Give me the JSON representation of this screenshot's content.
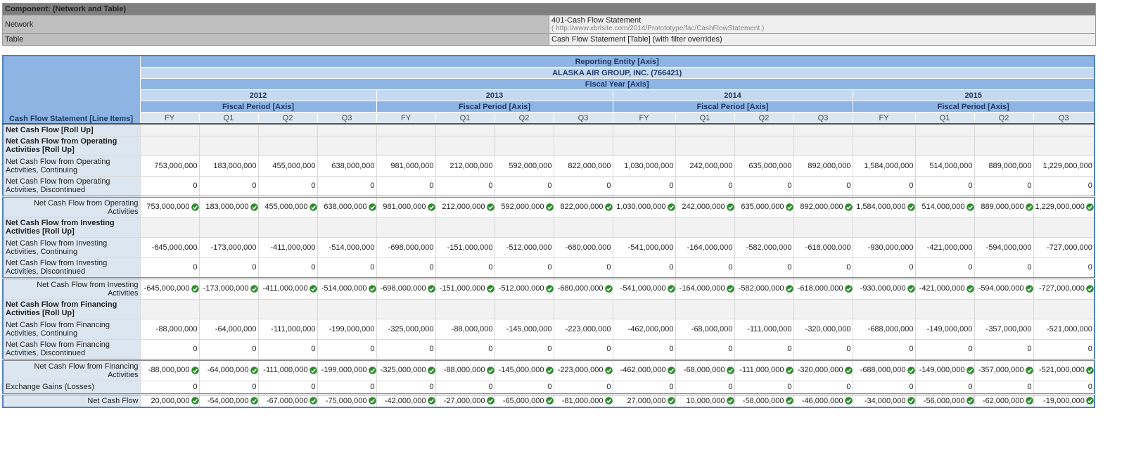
{
  "component": {
    "title": "Component: (Network and Table)",
    "network_label": "Network",
    "network_name": "401-Cash Flow Statement",
    "network_uri": "( http://www.xbrlsite.com/2014/Protototype/fac/CashFlowStatement )",
    "table_label": "Table",
    "table_name": "Cash Flow Statement [Table] (with filter overrides)"
  },
  "table": {
    "line_items_header": "Cash Flow Statement [Line Items]",
    "entity_axis": "Reporting Entity [Axis]",
    "entity": "ALASKA AIR GROUP, INC. (766421)",
    "year_axis": "Fiscal Year [Axis]",
    "years": [
      {
        "year": "2012",
        "period_axis": "Fiscal Period [Axis]",
        "periods": [
          "FY",
          "Q1",
          "Q2",
          "Q3"
        ]
      },
      {
        "year": "2013",
        "period_axis": "Fiscal Period [Axis]",
        "periods": [
          "FY",
          "Q1",
          "Q2",
          "Q3"
        ]
      },
      {
        "year": "2014",
        "period_axis": "Fiscal Period [Axis]",
        "periods": [
          "FY",
          "Q1",
          "Q2",
          "Q3"
        ]
      },
      {
        "year": "2015",
        "period_axis": "Fiscal Period [Axis]",
        "periods": [
          "FY",
          "Q1",
          "Q2",
          "Q3"
        ]
      }
    ],
    "rows": [
      {
        "label": "Net Cash Flow [Roll Up]",
        "style": "abstract",
        "values": []
      },
      {
        "label": "Net Cash Flow from Operating Activities [Roll Up]",
        "style": "abstract",
        "values": []
      },
      {
        "label": "Net Cash Flow from Operating Activities, Continuing",
        "style": "detail",
        "values": [
          "753,000,000",
          "183,000,000",
          "455,000,000",
          "638,000,000",
          "981,000,000",
          "212,000,000",
          "592,000,000",
          "822,000,000",
          "1,030,000,000",
          "242,000,000",
          "635,000,000",
          "892,000,000",
          "1,584,000,000",
          "514,000,000",
          "889,000,000",
          "1,229,000,000"
        ]
      },
      {
        "label": "Net Cash Flow from Operating Activities, Discontinued",
        "style": "detail",
        "values": [
          "0",
          "0",
          "0",
          "0",
          "0",
          "0",
          "0",
          "0",
          "0",
          "0",
          "0",
          "0",
          "0",
          "0",
          "0",
          "0"
        ]
      },
      {
        "label": "Net Cash Flow from Operating Activities",
        "style": "total",
        "values": [
          "753,000,000",
          "183,000,000",
          "455,000,000",
          "638,000,000",
          "981,000,000",
          "212,000,000",
          "592,000,000",
          "822,000,000",
          "1,030,000,000",
          "242,000,000",
          "635,000,000",
          "892,000,000",
          "1,584,000,000",
          "514,000,000",
          "889,000,000",
          "1,229,000,000"
        ]
      },
      {
        "label": "Net Cash Flow from Investing Activities [Roll Up]",
        "style": "abstract",
        "values": []
      },
      {
        "label": "Net Cash Flow from Investing Activities, Continuing",
        "style": "detail",
        "values": [
          "-645,000,000",
          "-173,000,000",
          "-411,000,000",
          "-514,000,000",
          "-698,000,000",
          "-151,000,000",
          "-512,000,000",
          "-680,000,000",
          "-541,000,000",
          "-164,000,000",
          "-582,000,000",
          "-618,000,000",
          "-930,000,000",
          "-421,000,000",
          "-594,000,000",
          "-727,000,000"
        ]
      },
      {
        "label": "Net Cash Flow from Investing Activities, Discontinued",
        "style": "detail",
        "values": [
          "0",
          "0",
          "0",
          "0",
          "0",
          "0",
          "0",
          "0",
          "0",
          "0",
          "0",
          "0",
          "0",
          "0",
          "0",
          "0"
        ]
      },
      {
        "label": "Net Cash Flow from Investing Activities",
        "style": "total",
        "values": [
          "-645,000,000",
          "-173,000,000",
          "-411,000,000",
          "-514,000,000",
          "-698,000,000",
          "-151,000,000",
          "-512,000,000",
          "-680,000,000",
          "-541,000,000",
          "-164,000,000",
          "-582,000,000",
          "-618,000,000",
          "-930,000,000",
          "-421,000,000",
          "-594,000,000",
          "-727,000,000"
        ]
      },
      {
        "label": "Net Cash Flow from Financing Activities [Roll Up]",
        "style": "abstract",
        "values": []
      },
      {
        "label": "Net Cash Flow from Financing Activities, Continuing",
        "style": "detail",
        "values": [
          "-88,000,000",
          "-64,000,000",
          "-111,000,000",
          "-199,000,000",
          "-325,000,000",
          "-88,000,000",
          "-145,000,000",
          "-223,000,000",
          "-462,000,000",
          "-68,000,000",
          "-111,000,000",
          "-320,000,000",
          "-688,000,000",
          "-149,000,000",
          "-357,000,000",
          "-521,000,000"
        ]
      },
      {
        "label": "Net Cash Flow from Financing Activities, Discontinued",
        "style": "detail",
        "values": [
          "0",
          "0",
          "0",
          "0",
          "0",
          "0",
          "0",
          "0",
          "0",
          "0",
          "0",
          "0",
          "0",
          "0",
          "0",
          "0"
        ]
      },
      {
        "label": "Net Cash Flow from Financing Activities",
        "style": "total",
        "values": [
          "-88,000,000",
          "-64,000,000",
          "-111,000,000",
          "-199,000,000",
          "-325,000,000",
          "-88,000,000",
          "-145,000,000",
          "-223,000,000",
          "-462,000,000",
          "-68,000,000",
          "-111,000,000",
          "-320,000,000",
          "-688,000,000",
          "-149,000,000",
          "-357,000,000",
          "-521,000,000"
        ]
      },
      {
        "label": "Exchange Gains (Losses)",
        "style": "detail",
        "values": [
          "0",
          "0",
          "0",
          "0",
          "0",
          "0",
          "0",
          "0",
          "0",
          "0",
          "0",
          "0",
          "0",
          "0",
          "0",
          "0"
        ]
      },
      {
        "label": "Net Cash Flow",
        "style": "total",
        "values": [
          "20,000,000",
          "-54,000,000",
          "-67,000,000",
          "-75,000,000",
          "-42,000,000",
          "-27,000,000",
          "-65,000,000",
          "-81,000,000",
          "27,000,000",
          "10,000,000",
          "-58,000,000",
          "-46,000,000",
          "-34,000,000",
          "-56,000,000",
          "-62,000,000",
          "-19,000,000"
        ]
      }
    ]
  }
}
